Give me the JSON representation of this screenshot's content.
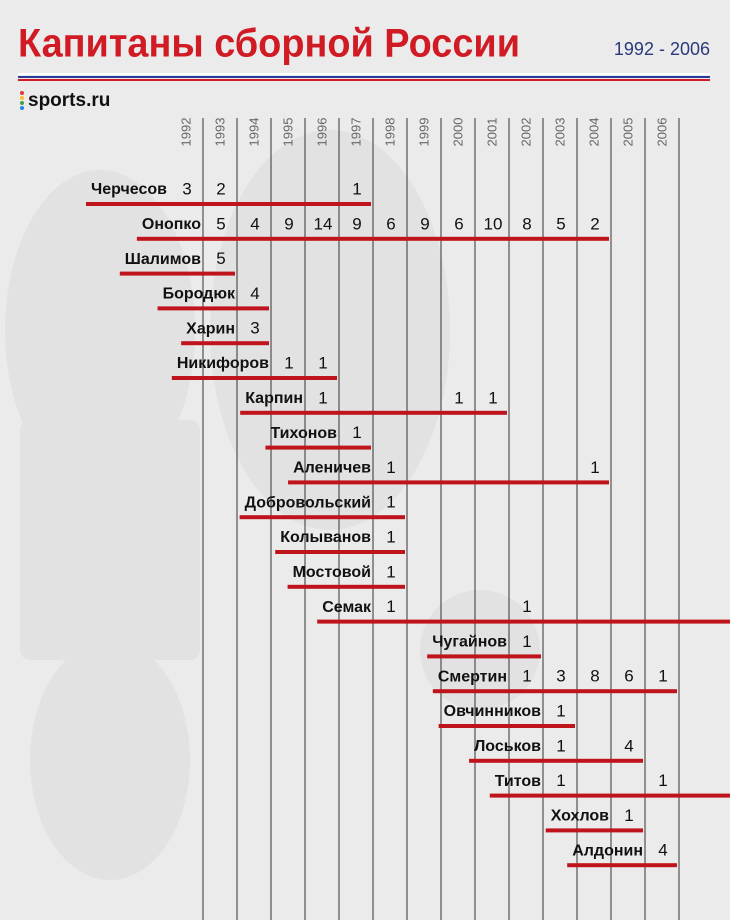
{
  "header": {
    "title": "Капитаны сборной России",
    "period": "1992 - 2006",
    "brand": "sports.ru"
  },
  "years": [
    "1992",
    "1993",
    "1994",
    "1995",
    "1996",
    "1997",
    "1998",
    "1999",
    "2000",
    "2001",
    "2002",
    "2003",
    "2004",
    "2005",
    "2006"
  ],
  "rows": [
    {
      "name": "Черчесов",
      "counts": [
        3,
        2,
        null,
        null,
        null,
        1,
        null,
        null,
        null,
        null,
        null,
        null,
        null,
        null,
        null
      ]
    },
    {
      "name": "Онопко",
      "counts": [
        null,
        5,
        4,
        9,
        14,
        9,
        6,
        9,
        6,
        10,
        8,
        5,
        2,
        null,
        null
      ]
    },
    {
      "name": "Шалимов",
      "counts": [
        null,
        5,
        null,
        null,
        null,
        null,
        null,
        null,
        null,
        null,
        null,
        null,
        null,
        null,
        null
      ]
    },
    {
      "name": "Бородюк",
      "counts": [
        null,
        null,
        4,
        null,
        null,
        null,
        null,
        null,
        null,
        null,
        null,
        null,
        null,
        null,
        null
      ]
    },
    {
      "name": "Харин",
      "counts": [
        null,
        null,
        3,
        null,
        null,
        null,
        null,
        null,
        null,
        null,
        null,
        null,
        null,
        null,
        null
      ]
    },
    {
      "name": "Никифоров",
      "counts": [
        null,
        null,
        null,
        1,
        1,
        null,
        null,
        null,
        null,
        null,
        null,
        null,
        null,
        null,
        null
      ]
    },
    {
      "name": "Карпин",
      "counts": [
        null,
        null,
        null,
        null,
        1,
        null,
        null,
        null,
        1,
        1,
        null,
        null,
        null,
        null,
        null
      ]
    },
    {
      "name": "Тихонов",
      "counts": [
        null,
        null,
        null,
        null,
        null,
        1,
        null,
        null,
        null,
        null,
        null,
        null,
        null,
        null,
        null
      ]
    },
    {
      "name": "Аленичев",
      "counts": [
        null,
        null,
        null,
        null,
        null,
        null,
        1,
        null,
        null,
        null,
        null,
        null,
        1,
        null,
        null
      ]
    },
    {
      "name": "Добровольский",
      "counts": [
        null,
        null,
        null,
        null,
        null,
        null,
        1,
        null,
        null,
        null,
        null,
        null,
        null,
        null,
        null
      ]
    },
    {
      "name": "Колыванов",
      "counts": [
        null,
        null,
        null,
        null,
        null,
        null,
        1,
        null,
        null,
        null,
        null,
        null,
        null,
        null,
        null
      ]
    },
    {
      "name": "Мостовой",
      "counts": [
        null,
        null,
        null,
        null,
        null,
        null,
        1,
        null,
        null,
        null,
        null,
        null,
        null,
        null,
        null
      ]
    },
    {
      "name": "Семак",
      "counts": [
        null,
        null,
        null,
        null,
        null,
        null,
        1,
        null,
        null,
        null,
        1,
        null,
        null,
        null,
        null
      ],
      "ongoing": true
    },
    {
      "name": "Чугайнов",
      "counts": [
        null,
        null,
        null,
        null,
        null,
        null,
        null,
        null,
        null,
        null,
        1,
        null,
        null,
        null,
        null
      ]
    },
    {
      "name": "Смертин",
      "counts": [
        null,
        null,
        null,
        null,
        null,
        null,
        null,
        null,
        null,
        null,
        1,
        3,
        8,
        6,
        1
      ]
    },
    {
      "name": "Овчинников",
      "counts": [
        null,
        null,
        null,
        null,
        null,
        null,
        null,
        null,
        null,
        null,
        null,
        1,
        null,
        null,
        null
      ]
    },
    {
      "name": "Лоськов",
      "counts": [
        null,
        null,
        null,
        null,
        null,
        null,
        null,
        null,
        null,
        null,
        null,
        1,
        null,
        4,
        null
      ]
    },
    {
      "name": "Титов",
      "counts": [
        null,
        null,
        null,
        null,
        null,
        null,
        null,
        null,
        null,
        null,
        null,
        1,
        null,
        null,
        1
      ],
      "ongoing": true
    },
    {
      "name": "Хохлов",
      "counts": [
        null,
        null,
        null,
        null,
        null,
        null,
        null,
        null,
        null,
        null,
        null,
        null,
        null,
        1,
        null
      ]
    },
    {
      "name": "Алдонин",
      "counts": [
        null,
        null,
        null,
        null,
        null,
        null,
        null,
        null,
        null,
        null,
        null,
        null,
        null,
        null,
        4
      ]
    }
  ]
}
